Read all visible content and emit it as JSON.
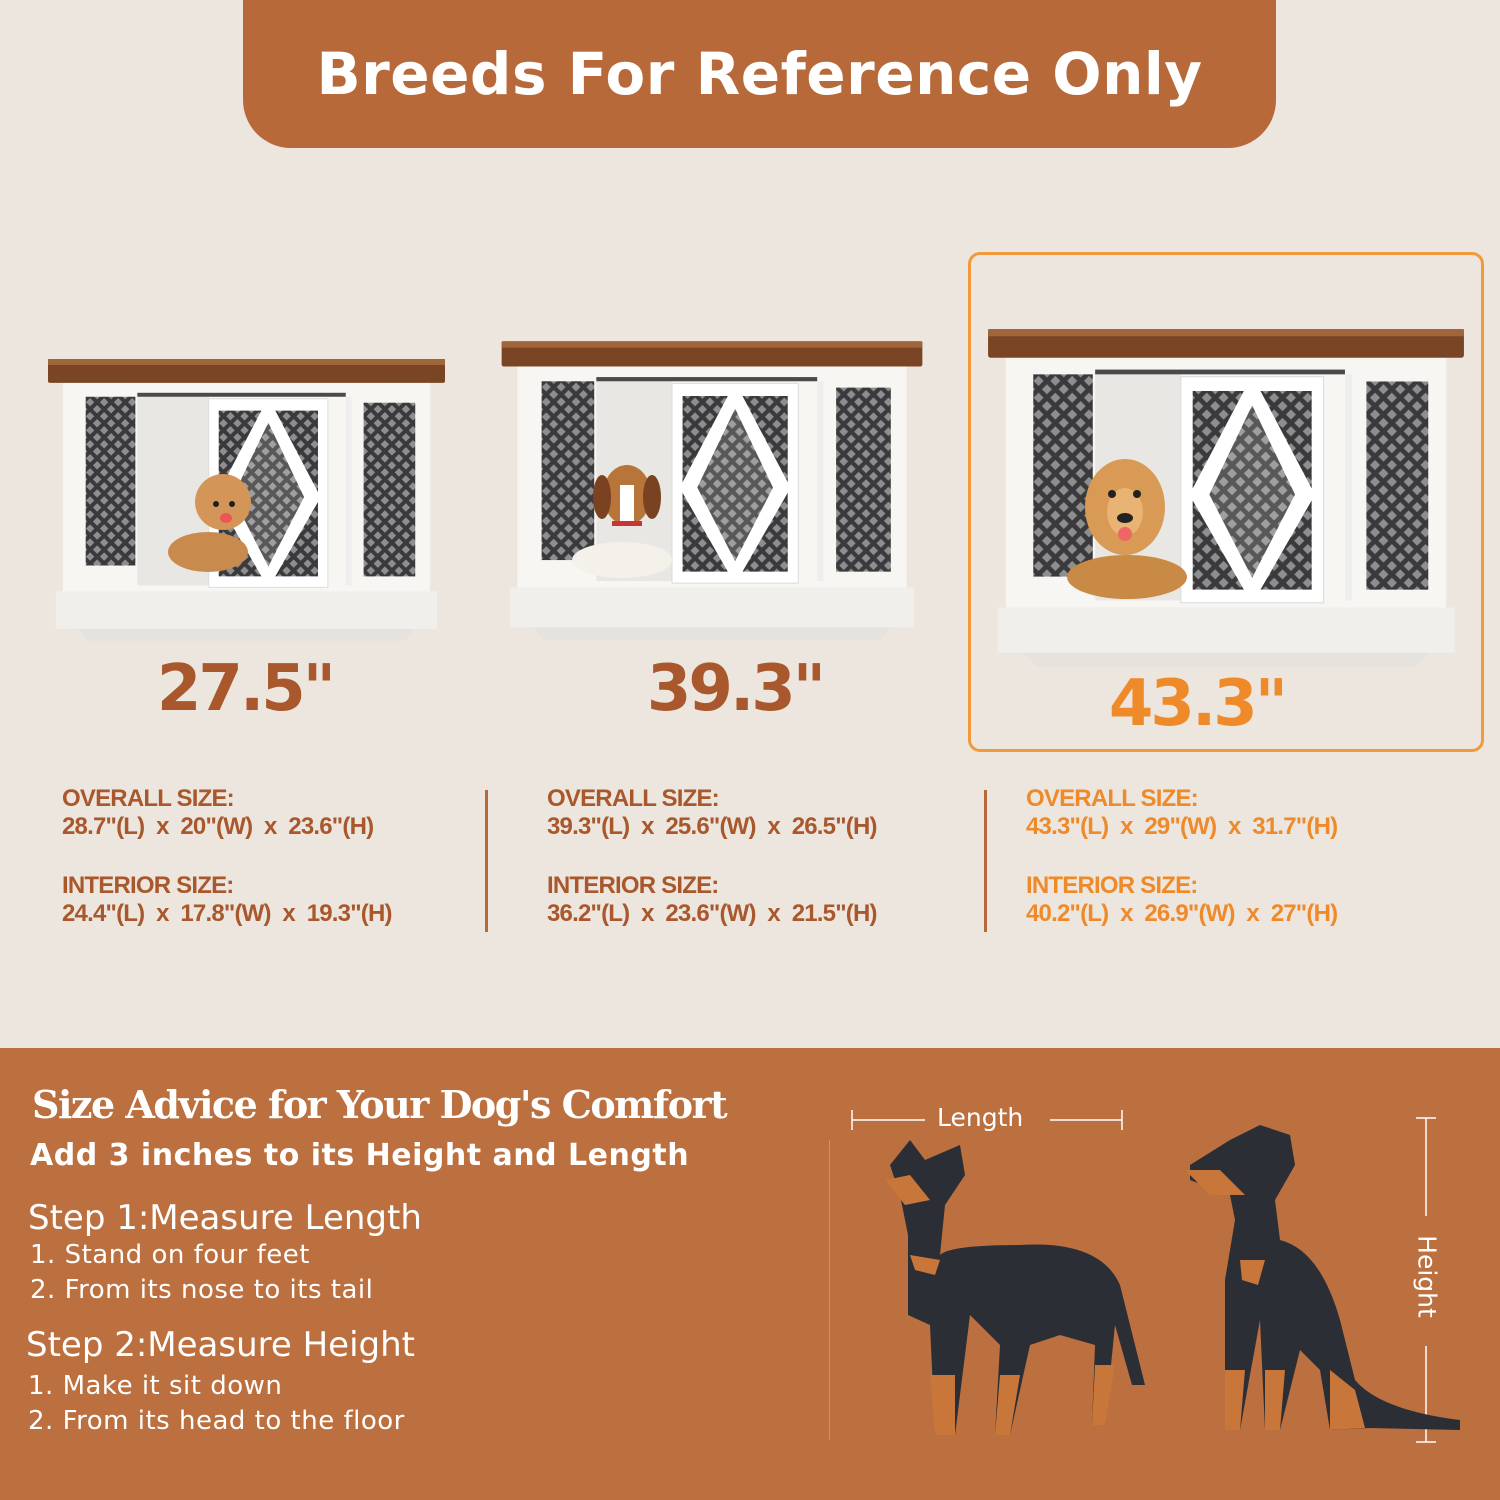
{
  "banner": {
    "title": "Breeds For Reference Only"
  },
  "colors": {
    "brown": "#b8693a",
    "text_brown": "#a8582c",
    "highlight_orange": "#ef8a2a",
    "background": "#ede6de",
    "bottom_bg": "#bc6f3f"
  },
  "products": [
    {
      "size": "27.5\"",
      "overall_label": "OVERALL SIZE:",
      "overall": "28.7\"(L)  x  20\"(W)  x  23.6\"(H)",
      "interior_label": "INTERIOR SIZE:",
      "interior": "24.4\"(L)  x  17.8\"(W)  x  19.3\"(H)",
      "dog": "poodle",
      "highlighted": false
    },
    {
      "size": "39.3\"",
      "overall_label": "OVERALL SIZE:",
      "overall": "39.3\"(L)  x  25.6\"(W)  x  26.5\"(H)",
      "interior_label": "INTERIOR SIZE:",
      "interior": "36.2\"(L)  x  23.6\"(W)  x  21.5\"(H)",
      "dog": "beagle",
      "highlighted": false
    },
    {
      "size": "43.3\"",
      "overall_label": "OVERALL SIZE:",
      "overall": "43.3\"(L)  x  29\"(W)  x  31.7\"(H)",
      "interior_label": "INTERIOR SIZE:",
      "interior": "40.2\"(L)  x  26.9\"(W)  x  27\"(H)",
      "dog": "golden retriever",
      "highlighted": true
    }
  ],
  "advice": {
    "title": "Size Advice for Your Dog's Comfort",
    "subtitle": "Add 3 inches to its Height and Length",
    "step1": {
      "title": "Step 1:Measure Length",
      "items": [
        "1. Stand on four feet",
        "2. From its nose to its tail"
      ]
    },
    "step2": {
      "title": "Step 2:Measure Height",
      "items": [
        "1. Make it sit down",
        "2. From its head to the floor"
      ]
    },
    "length_label": "Length",
    "height_label": "Height"
  }
}
